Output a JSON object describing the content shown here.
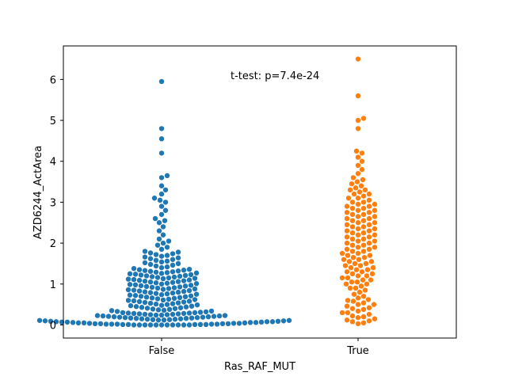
{
  "chart_data": {
    "type": "scatter",
    "subtype": "swarm",
    "title": "",
    "xlabel": "Ras_RAF_MUT",
    "ylabel": "AZD6244_ActArea",
    "categories": [
      "False",
      "True"
    ],
    "ylim": [
      -0.32,
      6.82
    ],
    "yticks": [
      "0",
      "1",
      "2",
      "3",
      "4",
      "5",
      "6"
    ],
    "grid": false,
    "annotation": "t-test: p=7.4e-24",
    "colors": [
      "#1f77b4",
      "#ff7f0e"
    ],
    "series": [
      {
        "category": "False",
        "values": [
          0.0,
          0.0,
          0.0,
          0.0,
          0.0,
          0.0,
          0.0,
          0.0,
          0.0,
          0.0,
          0.0,
          0.01,
          0.01,
          0.01,
          0.01,
          0.01,
          0.02,
          0.02,
          0.02,
          0.02,
          0.02,
          0.03,
          0.03,
          0.03,
          0.03,
          0.04,
          0.04,
          0.04,
          0.05,
          0.05,
          0.05,
          0.06,
          0.06,
          0.06,
          0.07,
          0.07,
          0.07,
          0.08,
          0.08,
          0.08,
          0.09,
          0.09,
          0.1,
          0.1,
          0.11,
          0.11,
          0.12,
          0.12,
          0.13,
          0.13,
          0.14,
          0.14,
          0.15,
          0.15,
          0.16,
          0.16,
          0.17,
          0.17,
          0.18,
          0.18,
          0.19,
          0.19,
          0.2,
          0.2,
          0.21,
          0.21,
          0.22,
          0.22,
          0.23,
          0.23,
          0.24,
          0.24,
          0.25,
          0.25,
          0.26,
          0.26,
          0.27,
          0.27,
          0.28,
          0.28,
          0.29,
          0.29,
          0.3,
          0.3,
          0.31,
          0.32,
          0.33,
          0.34,
          0.35,
          0.36,
          0.37,
          0.38,
          0.39,
          0.4,
          0.41,
          0.42,
          0.43,
          0.44,
          0.45,
          0.46,
          0.47,
          0.48,
          0.49,
          0.5,
          0.51,
          0.52,
          0.53,
          0.54,
          0.55,
          0.56,
          0.57,
          0.58,
          0.59,
          0.6,
          0.61,
          0.62,
          0.63,
          0.64,
          0.65,
          0.66,
          0.67,
          0.68,
          0.69,
          0.7,
          0.71,
          0.72,
          0.73,
          0.74,
          0.75,
          0.76,
          0.77,
          0.78,
          0.79,
          0.8,
          0.81,
          0.82,
          0.83,
          0.84,
          0.85,
          0.86,
          0.87,
          0.88,
          0.89,
          0.9,
          0.91,
          0.92,
          0.93,
          0.94,
          0.95,
          0.96,
          0.97,
          0.98,
          0.99,
          1.0,
          1.01,
          1.02,
          1.03,
          1.04,
          1.05,
          1.06,
          1.07,
          1.08,
          1.09,
          1.1,
          1.11,
          1.12,
          1.13,
          1.14,
          1.15,
          1.16,
          1.17,
          1.18,
          1.19,
          1.2,
          1.21,
          1.22,
          1.23,
          1.24,
          1.25,
          1.26,
          1.27,
          1.28,
          1.29,
          1.3,
          1.31,
          1.32,
          1.33,
          1.34,
          1.35,
          1.36,
          1.38,
          1.4,
          1.42,
          1.44,
          1.46,
          1.48,
          1.5,
          1.52,
          1.54,
          1.56,
          1.58,
          1.6,
          1.62,
          1.64,
          1.66,
          1.68,
          1.7,
          1.72,
          1.74,
          1.76,
          1.78,
          1.8,
          1.85,
          1.9,
          1.95,
          2.0,
          2.05,
          2.1,
          2.2,
          2.3,
          2.4,
          2.5,
          2.55,
          2.6,
          2.7,
          2.8,
          2.9,
          3.0,
          3.05,
          3.1,
          3.2,
          3.3,
          3.4,
          3.6,
          3.65,
          4.2,
          4.55,
          4.8,
          5.95
        ]
      },
      {
        "category": "True",
        "values": [
          0.03,
          0.05,
          0.08,
          0.12,
          0.15,
          0.18,
          0.22,
          0.26,
          0.3,
          0.34,
          0.38,
          0.42,
          0.46,
          0.5,
          0.54,
          0.58,
          0.62,
          0.66,
          0.7,
          0.75,
          0.8,
          0.85,
          0.9,
          0.95,
          1.0,
          1.05,
          1.1,
          1.15,
          1.2,
          1.25,
          1.3,
          1.35,
          1.4,
          1.45,
          1.5,
          1.55,
          1.6,
          1.65,
          1.7,
          1.75,
          1.8,
          1.85,
          1.9,
          1.95,
          2.0,
          2.05,
          2.1,
          2.15,
          2.2,
          2.25,
          2.3,
          2.35,
          2.4,
          2.45,
          2.5,
          2.55,
          2.6,
          2.65,
          2.7,
          2.75,
          2.8,
          2.85,
          2.9,
          2.95,
          3.0,
          3.05,
          3.1,
          3.15,
          3.2,
          3.25,
          3.3,
          3.35,
          3.4,
          3.45,
          3.5,
          3.55,
          3.6,
          3.7,
          3.8,
          3.9,
          4.0,
          4.1,
          4.2,
          4.25,
          4.8,
          5.0,
          5.05,
          5.6,
          6.5,
          0.1,
          0.2,
          0.3,
          0.4,
          0.5,
          0.6,
          0.9,
          1.0,
          1.1,
          1.2,
          1.3,
          1.4,
          1.5,
          1.6,
          1.7,
          1.8,
          1.9,
          2.0,
          2.1,
          2.2,
          2.3,
          2.4,
          2.5,
          2.6,
          2.7,
          2.8,
          2.9,
          3.0,
          3.1,
          3.2,
          3.3,
          1.05,
          1.15,
          1.25,
          1.35,
          1.45,
          1.55,
          1.65,
          1.75,
          1.85,
          1.95,
          2.05,
          2.15,
          2.25,
          2.35,
          2.45,
          2.55,
          2.65,
          2.75,
          2.85,
          2.95
        ]
      }
    ]
  }
}
